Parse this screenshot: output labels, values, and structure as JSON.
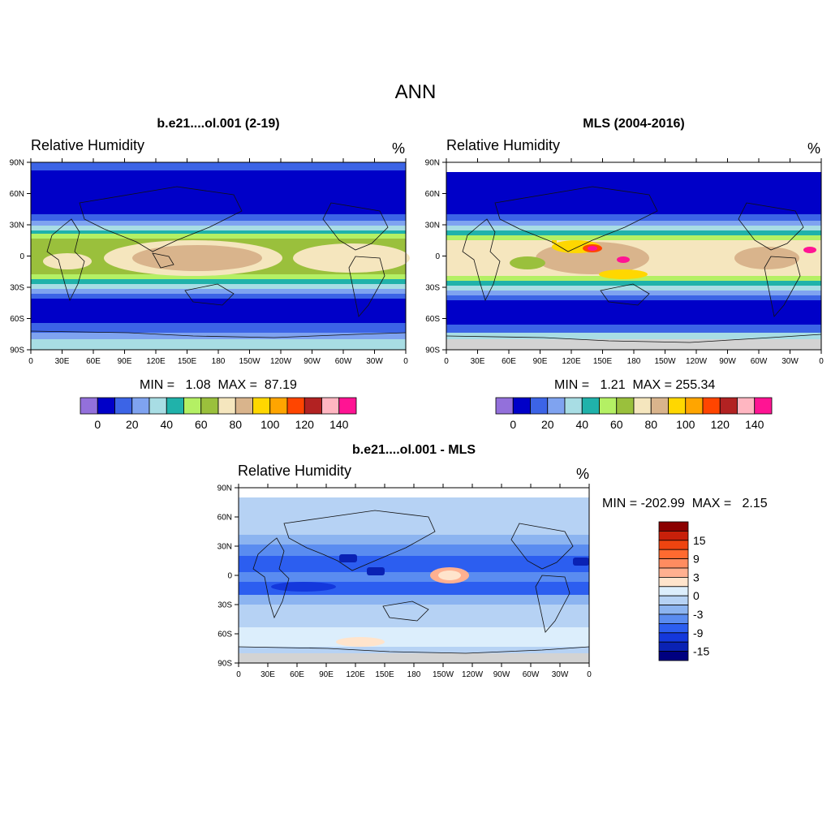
{
  "figure": {
    "title": "ANN"
  },
  "panels": {
    "model": {
      "title": "b.e21....ol.001 (2-19)",
      "variable": "Relative Humidity",
      "units": "%",
      "minmax": "MIN =   1.08  MAX =  87.19"
    },
    "obs": {
      "title": "MLS (2004-2016)",
      "variable": "Relative Humidity",
      "units": "%",
      "minmax": "MIN =   1.21  MAX = 255.34"
    },
    "diff": {
      "title": "b.e21....ol.001 - MLS",
      "variable": "Relative Humidity",
      "units": "%",
      "minmax": "MIN = -202.99  MAX =   2.15"
    }
  },
  "axes": {
    "lat_ticks": [
      "90N",
      "60N",
      "30N",
      "0",
      "30S",
      "60S",
      "90S"
    ],
    "lon_ticks": [
      "0",
      "30E",
      "60E",
      "90E",
      "120E",
      "150E",
      "180",
      "150W",
      "120W",
      "90W",
      "60W",
      "30W",
      "0"
    ]
  },
  "colorbars": {
    "abs": {
      "colors": [
        "#9370db",
        "#0000c8",
        "#3c64e6",
        "#7fa3f0",
        "#a8dde4",
        "#20b2aa",
        "#b4f064",
        "#9ac03c",
        "#f5e6be",
        "#d9b48c",
        "#ffd700",
        "#ffa500",
        "#ff4500",
        "#b22222",
        "#ffb6c1",
        "#ff1493"
      ],
      "labels": [
        "0",
        "20",
        "40",
        "60",
        "80",
        "100",
        "120",
        "140"
      ]
    },
    "diff": {
      "colors": [
        "#8b0000",
        "#c8200a",
        "#ee4410",
        "#ff6a30",
        "#ff8c60",
        "#ffb090",
        "#ffe4cc",
        "#dceefc",
        "#b6d2f4",
        "#8cb4f0",
        "#5a8cf0",
        "#2c5ef0",
        "#1438dc",
        "#0a22b4",
        "#000080"
      ],
      "labels": [
        "15",
        "9",
        "3",
        "0",
        "-3",
        "-9",
        "-15"
      ]
    }
  }
}
